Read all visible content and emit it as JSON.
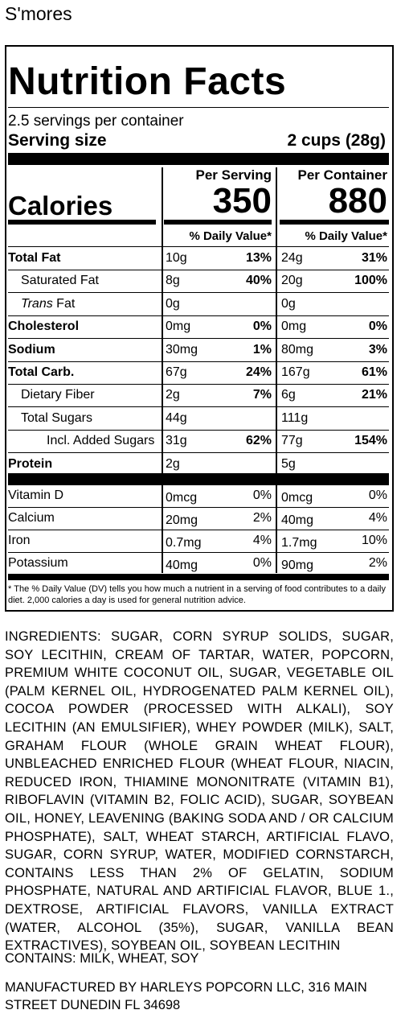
{
  "product": {
    "name": "S'mores"
  },
  "label": {
    "heading": "Nutrition Facts",
    "servings_per_container": "2.5 servings per container",
    "serving_size_label": "Serving size",
    "serving_size_value": "2 cups (28g)",
    "calories_label": "Calories",
    "per_serving_header": "Per Serving",
    "per_container_header": "Per Container",
    "calories_per_serving": "350",
    "calories_per_container": "880",
    "dv_header": "% Daily Value*"
  },
  "nutrients": [
    {
      "name": "Total Fat",
      "bold": true,
      "indent": 0,
      "serv_amt": "10g",
      "serv_dv": "13%",
      "cont_amt": "24g",
      "cont_dv": "31%"
    },
    {
      "name": "Saturated Fat",
      "bold": false,
      "indent": 1,
      "serv_amt": "8g",
      "serv_dv": "40%",
      "cont_amt": "20g",
      "cont_dv": "100%"
    },
    {
      "name_italic": "Trans",
      "name": " Fat",
      "bold": false,
      "indent": 1,
      "serv_amt": "0g",
      "serv_dv": "",
      "cont_amt": "0g",
      "cont_dv": ""
    },
    {
      "name": "Cholesterol",
      "bold": true,
      "indent": 0,
      "serv_amt": "0mg",
      "serv_dv": "0%",
      "cont_amt": "0mg",
      "cont_dv": "0%"
    },
    {
      "name": "Sodium",
      "bold": true,
      "indent": 0,
      "serv_amt": "30mg",
      "serv_dv": "1%",
      "cont_amt": "80mg",
      "cont_dv": "3%"
    },
    {
      "name": "Total Carb.",
      "bold": true,
      "indent": 0,
      "serv_amt": "67g",
      "serv_dv": "24%",
      "cont_amt": "167g",
      "cont_dv": "61%"
    },
    {
      "name": "Dietary Fiber",
      "bold": false,
      "indent": 1,
      "serv_amt": "2g",
      "serv_dv": "7%",
      "cont_amt": "6g",
      "cont_dv": "21%"
    },
    {
      "name": "Total Sugars",
      "bold": false,
      "indent": 1,
      "serv_amt": "44g",
      "serv_dv": "",
      "cont_amt": "111g",
      "cont_dv": ""
    },
    {
      "name": "Incl. Added Sugars",
      "bold": false,
      "indent": 2,
      "serv_amt": "31g",
      "serv_dv": "62%",
      "cont_amt": "77g",
      "cont_dv": "154%"
    },
    {
      "name": "Protein",
      "bold": true,
      "indent": 0,
      "serv_amt": "2g",
      "serv_dv": "",
      "cont_amt": "5g",
      "cont_dv": ""
    }
  ],
  "vitamins": [
    {
      "name": "Vitamin D",
      "serv_amt": "0mcg",
      "serv_dv": "0%",
      "cont_amt": "0mcg",
      "cont_dv": "0%"
    },
    {
      "name": "Calcium",
      "serv_amt": "20mg",
      "serv_dv": "2%",
      "cont_amt": "40mg",
      "cont_dv": "4%"
    },
    {
      "name": "Iron",
      "serv_amt": "0.7mg",
      "serv_dv": "4%",
      "cont_amt": "1.7mg",
      "cont_dv": "10%"
    },
    {
      "name": "Potassium",
      "serv_amt": "40mg",
      "serv_dv": "0%",
      "cont_amt": "90mg",
      "cont_dv": "2%"
    }
  ],
  "footnote": "* The % Daily Value (DV) tells you how much a nutrient in a serving of food contributes to a daily diet. 2,000 calories a day is used for general nutrition advice.",
  "ingredients": "INGREDIENTS: SUGAR, CORN SYRUP SOLIDS, SUGAR, SOY LECITHIN, CREAM OF TARTAR, WATER, POPCORN, PREMIUM WHITE COCONUT OIL, SUGAR, VEGETABLE OIL (PALM KERNEL OIL, HYDROGENATED PALM KERNEL OIL), COCOA POWDER (PROCESSED WITH ALKALI), SOY LECITHIN (AN EMULSIFIER), WHEY POWDER (MILK), SALT, GRAHAM FLOUR (WHOLE GRAIN WHEAT FLOUR), UNBLEACHED ENRICHED FLOUR (WHEAT FLOUR, NIACIN, REDUCED IRON, THIAMINE MONONITRATE (VITAMIN B1), RIBOFLAVIN (VITAMIN B2, FOLIC ACID), SUGAR, SOYBEAN OIL, HONEY, LEAVENING (BAKING SODA AND / OR CALCIUM PHOSPHATE), SALT, WHEAT STARCH, ARTIFICIAL FLAVO, SUGAR, CORN SYRUP, WATER, MODIFIED CORNSTARCH, CONTAINS LESS THAN 2% OF GELATIN, SODIUM PHOSPHATE, NATURAL AND ARTIFICIAL FLAVOR, BLUE 1., DEXTROSE, ARTIFICIAL FLAVORS, VANILLA EXTRACT (WATER, ALCOHOL (35%), SUGAR, VANILLA BEAN EXTRACTIVES), SOYBEAN OIL, SOYBEAN LECITHIN",
  "contains": "CONTAINS: MILK, WHEAT, SOY",
  "manufacturer": "MANUFACTURED BY HARLEYS POPCORN LLC, 316 MAIN STREET DUNEDIN FL 34698"
}
